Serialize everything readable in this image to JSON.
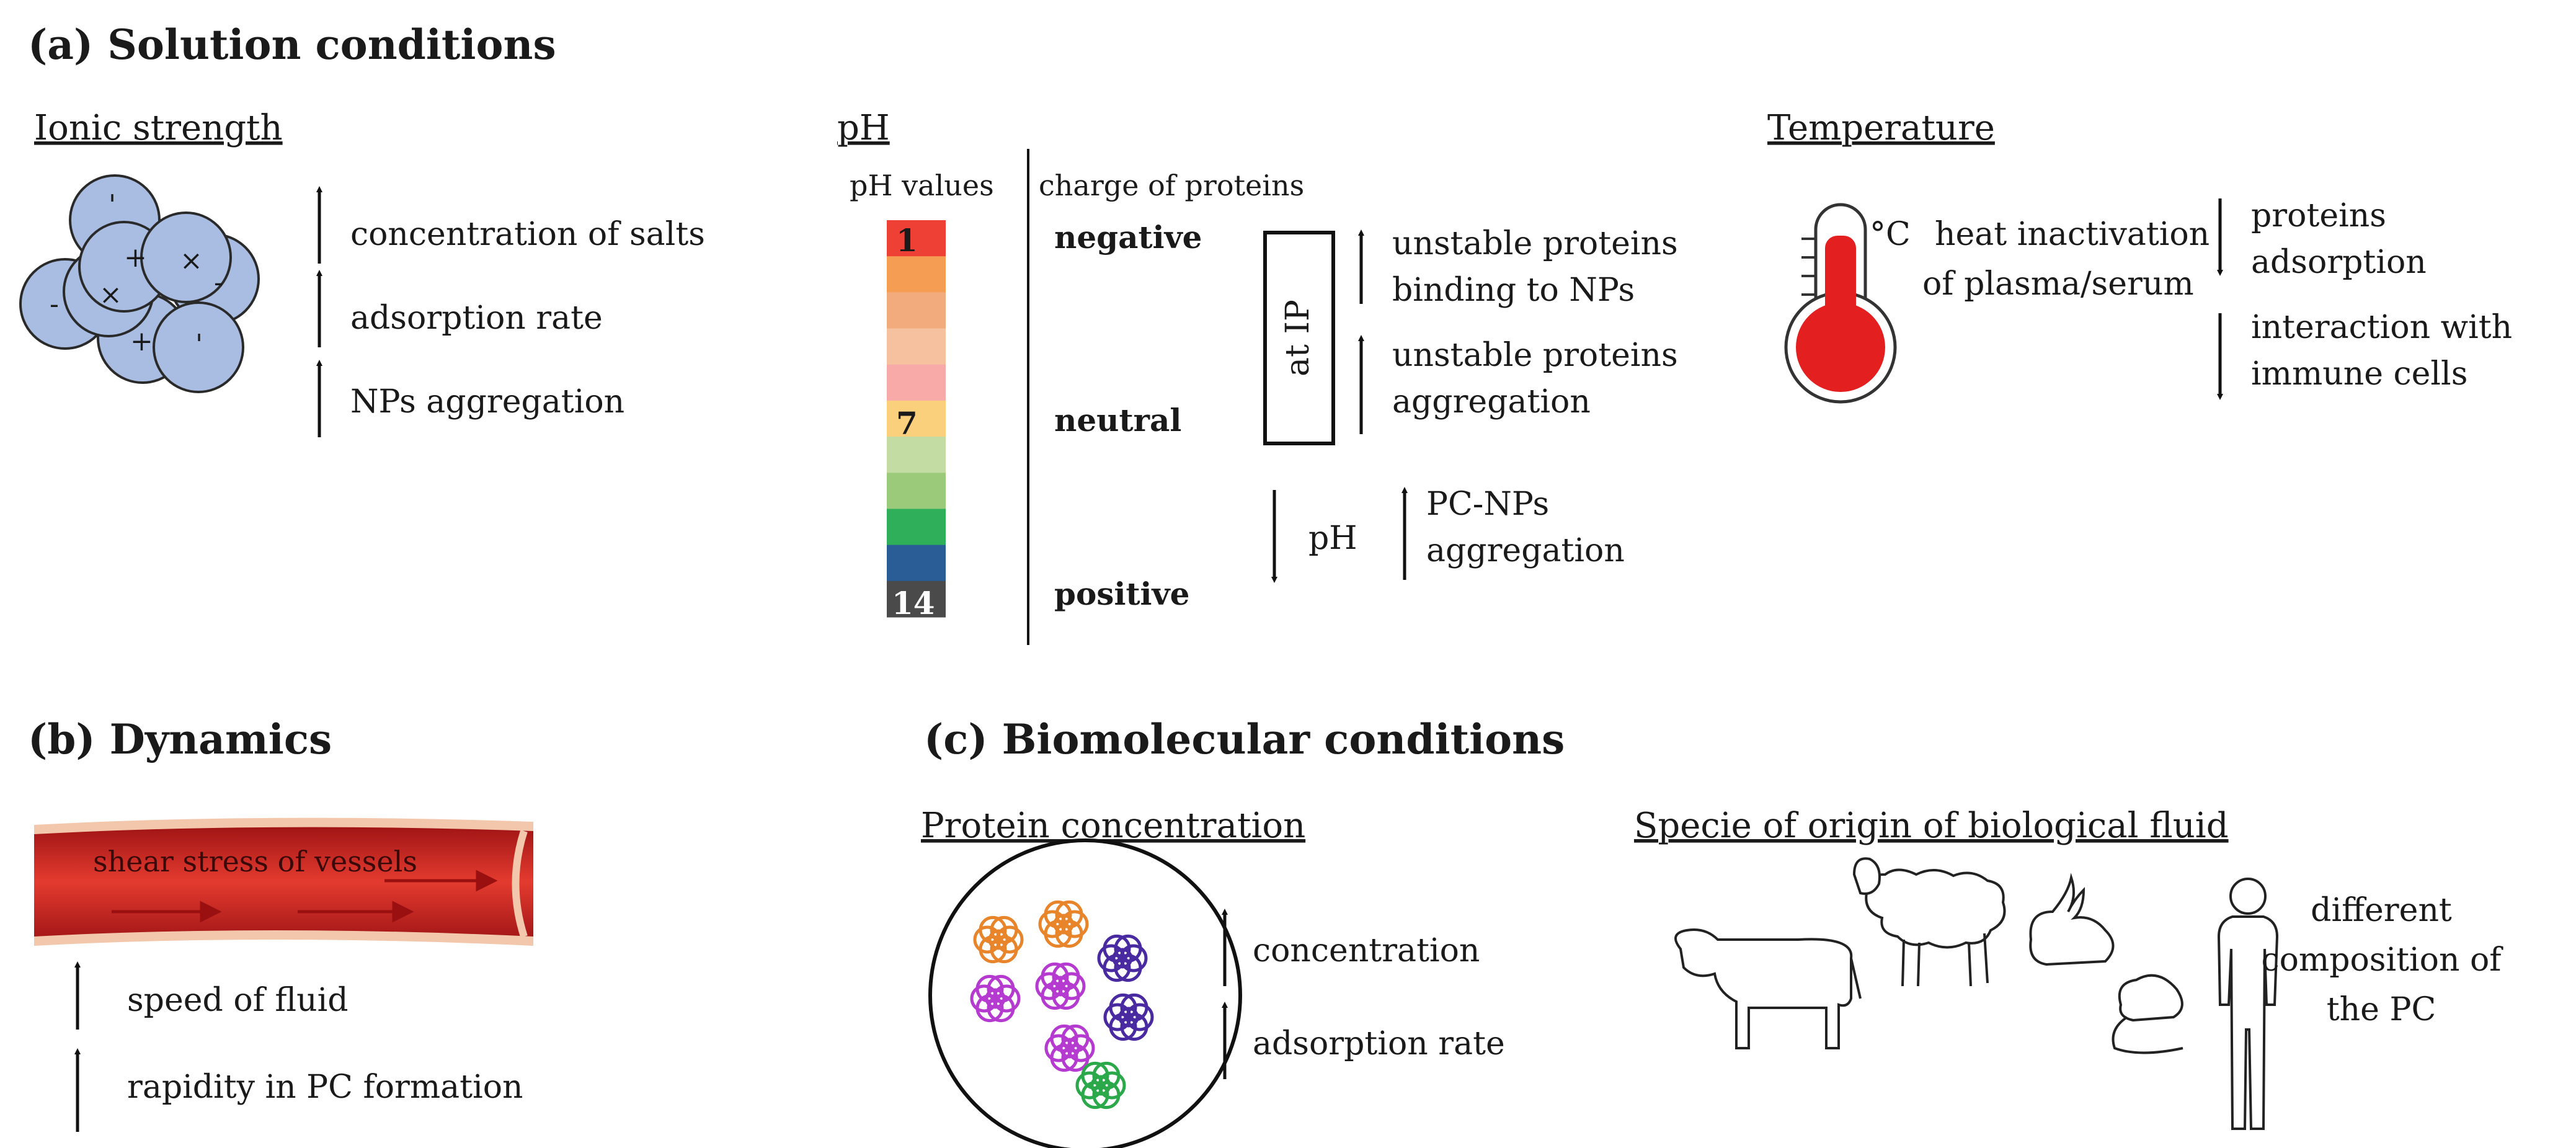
{
  "solution": {
    "title": "(a) Solution conditions",
    "ionic": {
      "title": "Ionic strength",
      "items": [
        "concentration of salts",
        "adsorption rate",
        "NPs aggregation"
      ],
      "charges": [
        "'",
        "+",
        "×",
        "-",
        "×",
        "-",
        "+",
        "'"
      ]
    },
    "ph": {
      "title": "pH",
      "col_values": "pH values",
      "col_charge": "charge of proteins",
      "scale_labels": [
        "1",
        "7",
        "14"
      ],
      "charges": [
        "negative",
        "neutral",
        "positive"
      ],
      "scale_colors": [
        "#ee4035",
        "#f49d53",
        "#f2ab7c",
        "#f5c19f",
        "#f7aaa8",
        "#fbd07c",
        "#c3dca4",
        "#9bcb7a",
        "#2faf5a",
        "#2a5c95",
        "#4a4a4a"
      ],
      "box_label": "at IP",
      "effects": [
        "unstable proteins",
        "binding to NPs",
        "unstable proteins",
        "aggregation"
      ],
      "low_ph": "pH",
      "pc_effect": [
        "PC-NPs",
        "aggregation"
      ]
    },
    "temperature": {
      "title": "Temperature",
      "unit": "°C",
      "cause": [
        "heat inactivation",
        "of plasma/serum"
      ],
      "effects": [
        "proteins",
        "adsorption",
        "interaction with",
        "immune cells"
      ]
    }
  },
  "dynamics": {
    "title": "(b) Dynamics",
    "vessel_label": "shear stress of vessels",
    "items": [
      "speed of fluid",
      "rapidity in PC formation"
    ]
  },
  "biomolecular": {
    "title": "(c) Biomolecular conditions",
    "protein": {
      "title": "Protein concentration",
      "items": [
        "concentration",
        "adsorption rate"
      ]
    },
    "species": {
      "title": "Specie of origin of biological fluid",
      "note": [
        "different",
        "composition of",
        "the PC"
      ]
    }
  }
}
